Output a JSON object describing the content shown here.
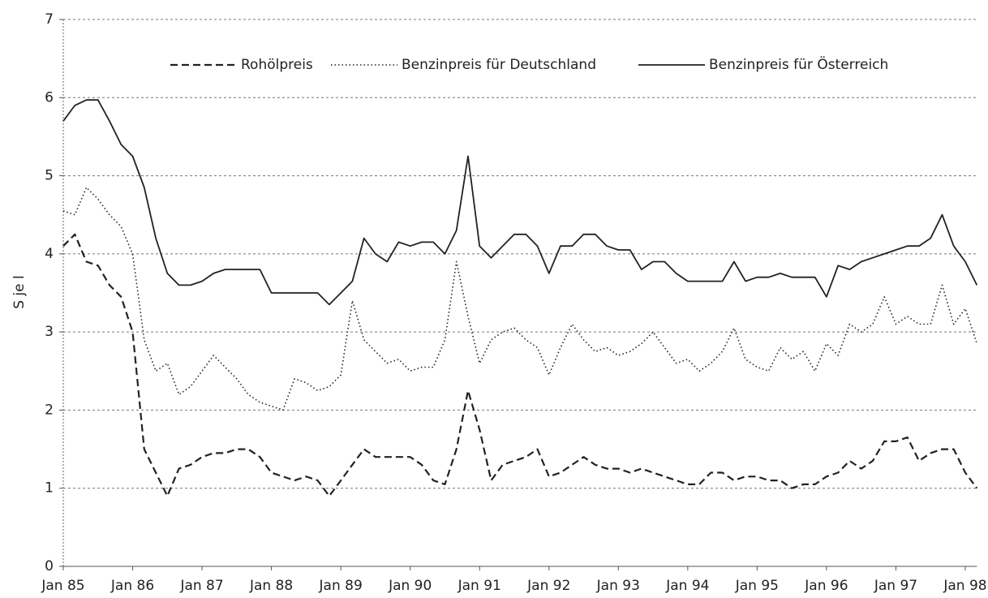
{
  "chart_data": {
    "type": "line",
    "ylabel": "S je l",
    "categories": [
      "Jan 85",
      null,
      null,
      null,
      null,
      null,
      "Jan 86",
      null,
      null,
      null,
      null,
      null,
      "Jan 87",
      null,
      null,
      null,
      null,
      null,
      "Jan 88",
      null,
      null,
      null,
      null,
      null,
      "Jan 89",
      null,
      null,
      null,
      null,
      null,
      "Jan 90",
      null,
      null,
      null,
      null,
      null,
      "Jan 91",
      null,
      null,
      null,
      null,
      null,
      "Jan 92",
      null,
      null,
      null,
      null,
      null,
      "Jan 93",
      null,
      null,
      null,
      null,
      null,
      "Jan 94",
      null,
      null,
      null,
      null,
      null,
      "Jan 95",
      null,
      null,
      null,
      null,
      null,
      "Jan 96",
      null,
      null,
      null,
      null,
      null,
      "Jan 97",
      null,
      null,
      null,
      null,
      null,
      "Jan 98",
      null
    ],
    "series": [
      {
        "name": "Rohölpreis",
        "color": "#222222",
        "dash": "dashed",
        "values": [
          4.1,
          4.25,
          3.9,
          3.85,
          3.6,
          3.45,
          3.0,
          1.5,
          1.2,
          0.9,
          1.25,
          1.3,
          1.4,
          1.45,
          1.45,
          1.5,
          1.5,
          1.4,
          1.2,
          1.15,
          1.1,
          1.15,
          1.1,
          0.9,
          1.1,
          1.3,
          1.5,
          1.4,
          1.4,
          1.4,
          1.4,
          1.3,
          1.1,
          1.05,
          1.5,
          2.25,
          1.75,
          1.1,
          1.3,
          1.35,
          1.4,
          1.5,
          1.15,
          1.2,
          1.3,
          1.4,
          1.3,
          1.25,
          1.25,
          1.2,
          1.25,
          1.2,
          1.15,
          1.1,
          1.05,
          1.05,
          1.2,
          1.2,
          1.1,
          1.15,
          1.15,
          1.1,
          1.1,
          1.0,
          1.05,
          1.05,
          1.15,
          1.2,
          1.35,
          1.25,
          1.35,
          1.6,
          1.6,
          1.65,
          1.35,
          1.45,
          1.5,
          1.5,
          1.2,
          1.0
        ]
      },
      {
        "name": "Benzinpreis für Deutschland",
        "color": "#222222",
        "dash": "dotted",
        "values": [
          4.55,
          4.5,
          4.85,
          4.7,
          4.5,
          4.35,
          4.0,
          2.9,
          2.5,
          2.6,
          2.2,
          2.3,
          2.5,
          2.7,
          2.55,
          2.4,
          2.2,
          2.1,
          2.05,
          2.0,
          2.4,
          2.35,
          2.25,
          2.3,
          2.45,
          3.4,
          2.9,
          2.75,
          2.6,
          2.65,
          2.5,
          2.55,
          2.55,
          2.9,
          3.9,
          3.2,
          2.6,
          2.9,
          3.0,
          3.05,
          2.9,
          2.8,
          2.45,
          2.8,
          3.1,
          2.9,
          2.75,
          2.8,
          2.7,
          2.75,
          2.85,
          3.0,
          2.8,
          2.6,
          2.65,
          2.5,
          2.6,
          2.75,
          3.05,
          2.65,
          2.55,
          2.5,
          2.8,
          2.65,
          2.75,
          2.5,
          2.85,
          2.7,
          3.1,
          3.0,
          3.1,
          3.45,
          3.1,
          3.2,
          3.1,
          3.1,
          3.6,
          3.1,
          3.3,
          2.85
        ]
      },
      {
        "name": "Benzinpreis für Österreich",
        "color": "#222222",
        "dash": "solid",
        "values": [
          5.7,
          5.9,
          5.97,
          5.97,
          5.7,
          5.4,
          5.25,
          4.85,
          4.2,
          3.75,
          3.6,
          3.6,
          3.65,
          3.75,
          3.8,
          3.8,
          3.8,
          3.8,
          3.5,
          3.5,
          3.5,
          3.5,
          3.5,
          3.35,
          3.5,
          3.65,
          4.2,
          4.0,
          3.9,
          4.15,
          4.1,
          4.15,
          4.15,
          4.0,
          4.3,
          5.25,
          4.1,
          3.95,
          4.1,
          4.25,
          4.25,
          4.1,
          3.75,
          4.1,
          4.1,
          4.25,
          4.25,
          4.1,
          4.05,
          4.05,
          3.8,
          3.9,
          3.9,
          3.75,
          3.65,
          3.65,
          3.65,
          3.65,
          3.9,
          3.65,
          3.7,
          3.7,
          3.75,
          3.7,
          3.7,
          3.7,
          3.45,
          3.85,
          3.8,
          3.9,
          3.95,
          4.0,
          4.05,
          4.1,
          4.1,
          4.2,
          4.5,
          4.1,
          3.9,
          3.6
        ]
      }
    ],
    "ylim": [
      0,
      7
    ],
    "yticks": [
      0,
      1,
      2,
      3,
      4,
      5,
      6,
      7
    ],
    "grid": true,
    "legend": "top"
  }
}
